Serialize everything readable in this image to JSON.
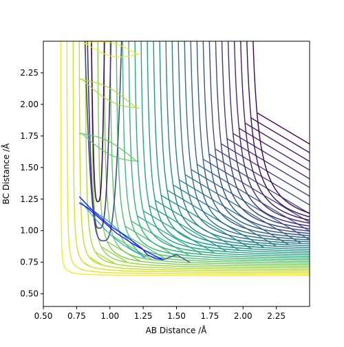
{
  "chart_data": {
    "type": "contour",
    "xlabel": "AB Distance /Å",
    "ylabel": "BC Distance /Å",
    "xlim": [
      0.5,
      2.5
    ],
    "ylim": [
      0.4,
      2.5
    ],
    "x_ticks": [
      0.5,
      0.75,
      1.0,
      1.25,
      1.5,
      1.75,
      2.0,
      2.25
    ],
    "y_ticks": [
      0.5,
      0.75,
      1.0,
      1.25,
      1.5,
      1.75,
      2.0,
      2.25
    ],
    "x_tick_labels": [
      "0.50",
      "0.75",
      "1.00",
      "1.25",
      "1.50",
      "1.75",
      "2.00",
      "2.25"
    ],
    "y_tick_labels": [
      "0.50",
      "0.75",
      "1.00",
      "1.25",
      "1.50",
      "1.75",
      "2.00",
      "2.25"
    ],
    "grid": false,
    "colormap": "viridis",
    "surface_contours": {
      "count": 32,
      "x_start_min": 0.63,
      "x_start_step": 0.045,
      "y_floor_min": 0.42,
      "y_floor_step": 0.012
    },
    "well_contours": [
      {
        "x_center": 0.91,
        "width": 0.05,
        "y_bottom": 1.23,
        "color": "#440154"
      },
      {
        "x_center": 0.92,
        "width": 0.09,
        "y_bottom": 1.02,
        "color": "#46317e"
      },
      {
        "x_center": 0.95,
        "width": 0.14,
        "y_bottom": 0.92,
        "color": "#3f4a8a"
      }
    ],
    "trajectory": [
      [
        0.77,
        1.27
      ],
      [
        0.87,
        1.16
      ],
      [
        1.0,
        1.04
      ],
      [
        1.1,
        0.97
      ],
      [
        1.18,
        0.91
      ],
      [
        1.24,
        0.86
      ],
      [
        1.28,
        0.81
      ],
      [
        1.34,
        0.78
      ],
      [
        1.4,
        0.77
      ],
      [
        1.3,
        0.82
      ],
      [
        1.18,
        0.89
      ],
      [
        1.05,
        0.98
      ],
      [
        0.92,
        1.1
      ],
      [
        0.82,
        1.19
      ],
      [
        0.77,
        1.22
      ]
    ],
    "probability_loops": [
      {
        "x_start": 0.77,
        "y_start": 2.2,
        "x_end": 1.2,
        "y_end": 1.97,
        "color": "#addc30"
      },
      {
        "x_start": 0.77,
        "y_start": 1.77,
        "x_end": 1.2,
        "y_end": 1.55,
        "color": "#5ec962"
      },
      {
        "x_start": 0.77,
        "y_start": 1.22,
        "x_end": 1.25,
        "y_end": 0.79,
        "color": "#21a6cc"
      },
      {
        "x_start": 0.8,
        "y_start": 2.48,
        "x_end": 1.2,
        "y_end": 2.4,
        "color": "#fde725"
      }
    ],
    "tail": [
      [
        1.4,
        0.77
      ],
      [
        1.45,
        0.79
      ],
      [
        1.5,
        0.81
      ],
      [
        1.55,
        0.78
      ],
      [
        1.6,
        0.75
      ]
    ]
  }
}
